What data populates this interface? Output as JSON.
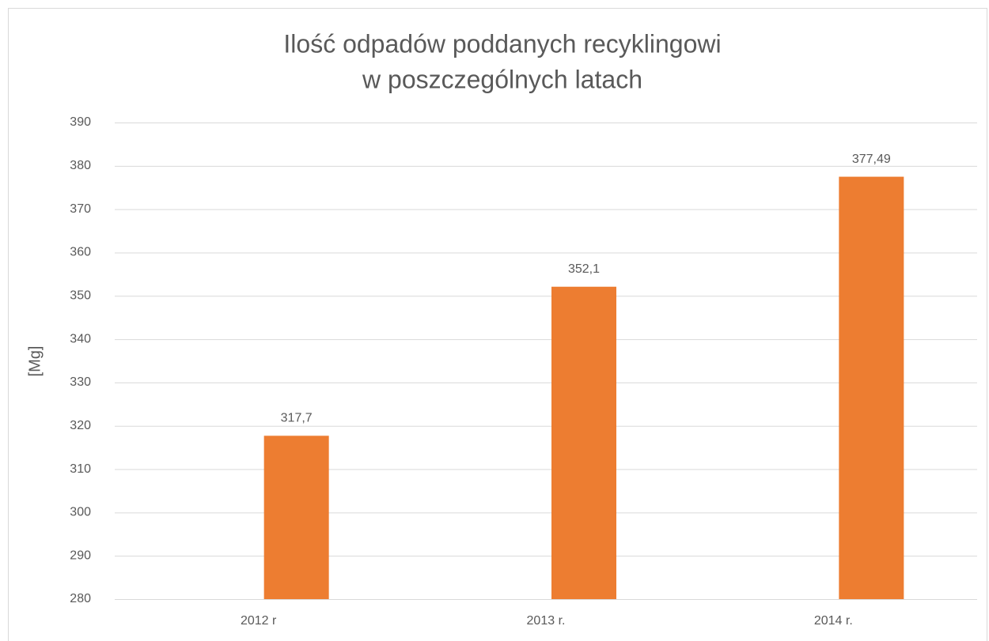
{
  "chart_data": {
    "type": "bar",
    "title": [
      "Ilość odpadów poddanych recyklingowi",
      "w poszczególnych latach"
    ],
    "y_label": "[Mg]",
    "categories": [
      "2012 r",
      "2013 r.",
      "2014 r."
    ],
    "values": [
      317.7,
      352.1,
      377.49
    ],
    "value_labels": [
      "317,7",
      "352,1",
      "377,49"
    ],
    "color": "#ed7d31",
    "ylim": [
      280,
      390
    ],
    "yticks": [
      280,
      290,
      300,
      310,
      320,
      330,
      340,
      350,
      360,
      370,
      380,
      390
    ],
    "grid": true
  }
}
